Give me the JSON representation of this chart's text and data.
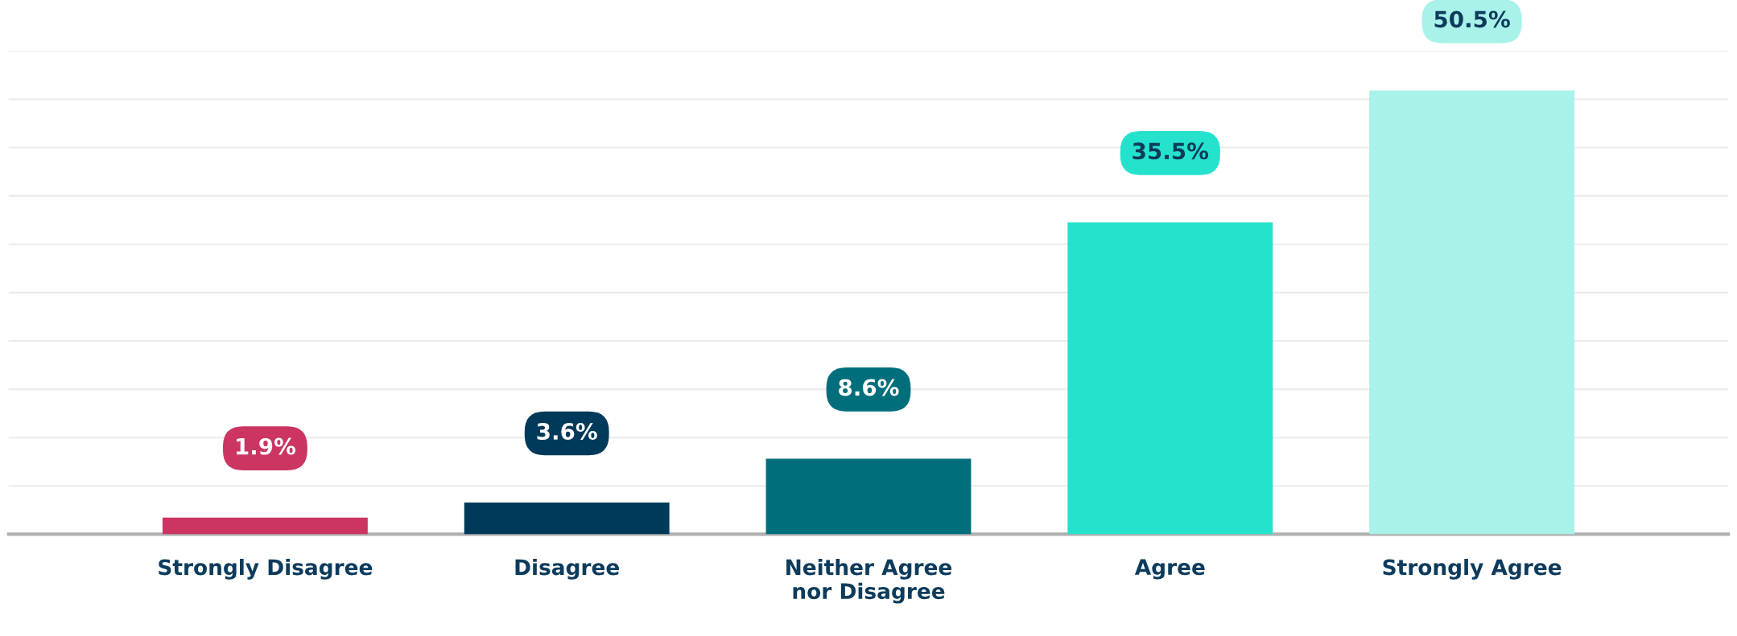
{
  "chart_data": {
    "type": "bar",
    "categories": [
      "Strongly Disagree",
      "Disagree",
      "Neither Agree\nnor Disagree",
      "Agree",
      "Strongly Agree"
    ],
    "values": [
      1.9,
      3.6,
      8.6,
      35.5,
      50.5
    ],
    "colors": [
      "#cc3461",
      "#003a5a",
      "#006f7b",
      "#25e2cd",
      "#a8f2e9"
    ],
    "value_labels": [
      "1.9%",
      "3.6%",
      "8.6%",
      "35.5%",
      "50.5%"
    ],
    "ylim": [
      0,
      55
    ],
    "yticks": [
      {
        "value": 5.5,
        "label": null
      },
      {
        "value": 11,
        "label": null
      },
      {
        "value": 16.5,
        "label": null
      },
      {
        "value": 22,
        "label": null
      },
      {
        "value": 27.5,
        "label": null
      },
      {
        "value": 33,
        "label": null
      },
      {
        "value": 38.5,
        "label": null
      },
      {
        "value": 44,
        "label": null
      },
      {
        "value": 49.5,
        "label": null
      },
      {
        "value": 55,
        "label": null
      }
    ],
    "grid": "y",
    "tick_labels": "x"
  }
}
